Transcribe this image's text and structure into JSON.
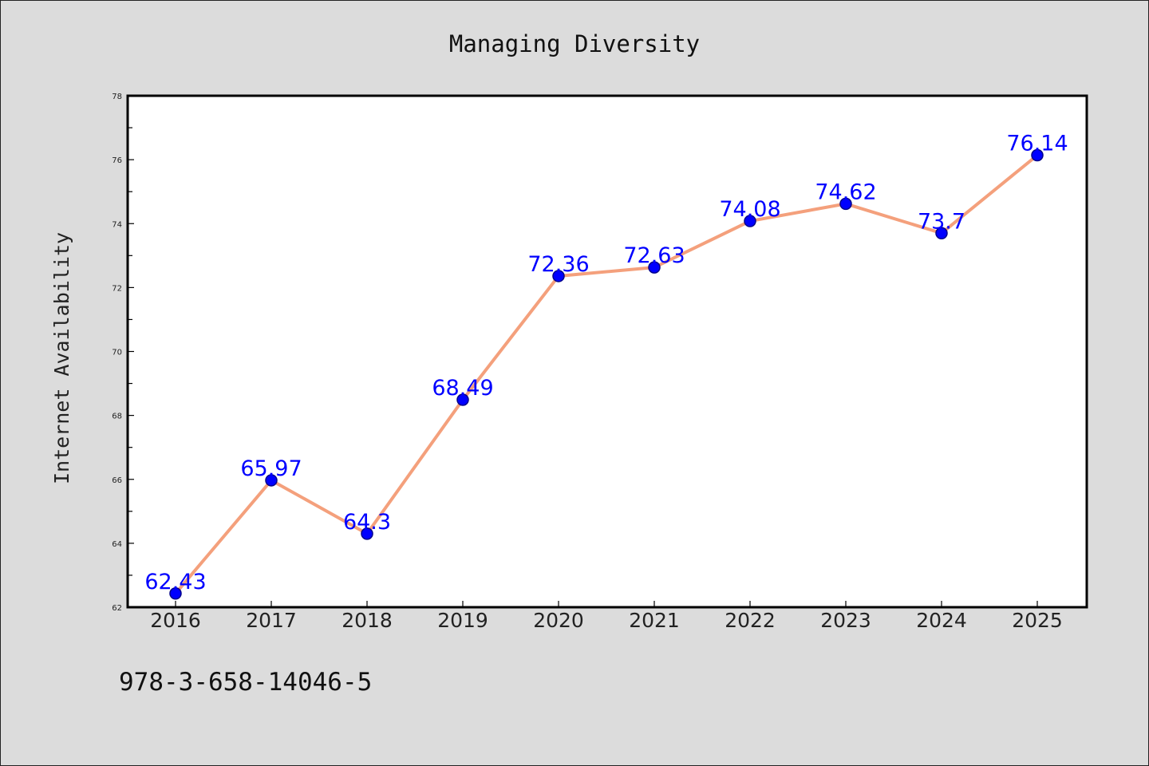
{
  "chart_data": {
    "type": "line",
    "title": "Managing Diversity",
    "xlabel": "",
    "ylabel": "Internet Availability",
    "categories": [
      "2016",
      "2017",
      "2018",
      "2019",
      "2020",
      "2021",
      "2022",
      "2023",
      "2024",
      "2025"
    ],
    "series": [
      {
        "values": [
          62.43,
          65.97,
          64.3,
          68.49,
          72.36,
          72.63,
          74.08,
          74.62,
          73.7,
          76.14
        ],
        "data_labels": [
          "62.43",
          "65.97",
          "64.3",
          "68.49",
          "72.36",
          "72.63",
          "74.08",
          "74.62",
          "73.7",
          "76.14"
        ]
      }
    ],
    "ylim": [
      62,
      78
    ],
    "yticks": [
      "62",
      "64",
      "66",
      "68",
      "70",
      "72",
      "74",
      "76",
      "78"
    ],
    "grid": false,
    "legend": "none",
    "colors": {
      "line": "#f4a07c",
      "marker": "#0000ff",
      "marker_edge": "#00008b",
      "data_label": "#0000ff",
      "plot_background": "#ffffff",
      "figure_background": "#dcdcdc"
    }
  },
  "annotation": {
    "text": "978-3-658-14046-5"
  }
}
